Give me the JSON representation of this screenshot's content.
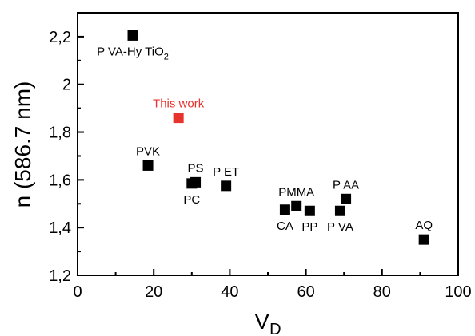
{
  "chart_data": {
    "type": "scatter",
    "xlabel": "V",
    "xlabel_sub": "D",
    "ylabel": "n (586.7 nm)",
    "xlim": [
      0,
      100
    ],
    "ylim": [
      1.2,
      2.3
    ],
    "x_ticks": [
      0,
      20,
      40,
      60,
      80,
      100
    ],
    "x_tick_labels": [
      "0",
      "20",
      "40",
      "60",
      "80",
      "100"
    ],
    "y_ticks": [
      1.2,
      1.4,
      1.6,
      1.8,
      2.0,
      2.2
    ],
    "y_tick_labels": [
      "1,2",
      "1,4",
      "1,6",
      "1,8",
      "2",
      "2,2"
    ],
    "grid": false,
    "marker_color": "#000000",
    "highlight_color": "#e8322c",
    "points": [
      {
        "label": "P VA-Hy TiO",
        "label_sub": "2",
        "x": 14.5,
        "y": 2.205,
        "label_pos": "below",
        "highlight": false
      },
      {
        "label": "This work",
        "x": 26.5,
        "y": 1.86,
        "label_pos": "above",
        "highlight": true
      },
      {
        "label": "PVK",
        "x": 18.5,
        "y": 1.66,
        "label_pos": "above",
        "highlight": false
      },
      {
        "label": "PC",
        "x": 30,
        "y": 1.585,
        "label_pos": "below",
        "highlight": false
      },
      {
        "label": "PS",
        "x": 31,
        "y": 1.59,
        "label_pos": "above",
        "highlight": false
      },
      {
        "label": "P ET",
        "x": 39,
        "y": 1.575,
        "label_pos": "above",
        "highlight": false
      },
      {
        "label": "CA",
        "x": 54.5,
        "y": 1.475,
        "label_pos": "below",
        "highlight": false
      },
      {
        "label": "PMMA",
        "x": 57.5,
        "y": 1.49,
        "label_pos": "above",
        "highlight": false
      },
      {
        "label": "PP",
        "x": 61,
        "y": 1.47,
        "label_pos": "below",
        "highlight": false
      },
      {
        "label": "P VA",
        "x": 69,
        "y": 1.47,
        "label_pos": "below",
        "highlight": false
      },
      {
        "label": "P AA",
        "x": 70.5,
        "y": 1.52,
        "label_pos": "above",
        "highlight": false
      },
      {
        "label": "AQ",
        "x": 91,
        "y": 1.35,
        "label_pos": "above",
        "highlight": false
      }
    ]
  }
}
